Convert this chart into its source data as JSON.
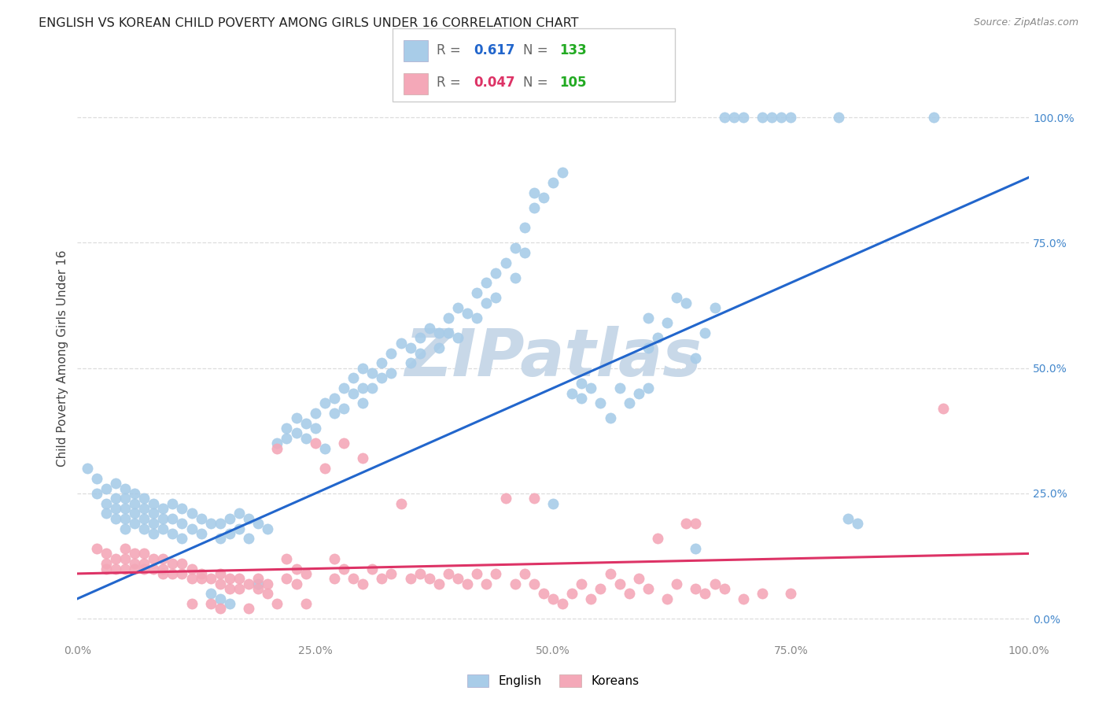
{
  "title": "ENGLISH VS KOREAN CHILD POVERTY AMONG GIRLS UNDER 16 CORRELATION CHART",
  "source": "Source: ZipAtlas.com",
  "ylabel": "Child Poverty Among Girls Under 16",
  "english_R": "0.617",
  "english_N": "133",
  "korean_R": "0.047",
  "korean_N": "105",
  "english_color": "#a8cce8",
  "korean_color": "#f4a8b8",
  "english_line_color": "#2266cc",
  "korean_line_color": "#dd3366",
  "watermark_text": "ZIPatlas",
  "watermark_color": "#c8d8e8",
  "background_color": "#ffffff",
  "grid_color": "#dddddd",
  "title_color": "#222222",
  "source_color": "#888888",
  "tick_color": "#888888",
  "right_tick_color": "#4488cc",
  "legend_N_color": "#22aa22",
  "xtick_labels": [
    "0.0%",
    "25.0%",
    "50.0%",
    "75.0%",
    "100.0%"
  ],
  "xtick_values": [
    0.0,
    0.25,
    0.5,
    0.75,
    1.0
  ],
  "ytick_labels": [
    "0.0%",
    "25.0%",
    "50.0%",
    "75.0%",
    "100.0%"
  ],
  "ytick_values": [
    0.0,
    0.25,
    0.5,
    0.75,
    1.0
  ],
  "english_scatter": [
    [
      0.01,
      0.3
    ],
    [
      0.02,
      0.28
    ],
    [
      0.02,
      0.25
    ],
    [
      0.03,
      0.26
    ],
    [
      0.03,
      0.23
    ],
    [
      0.03,
      0.21
    ],
    [
      0.04,
      0.27
    ],
    [
      0.04,
      0.24
    ],
    [
      0.04,
      0.22
    ],
    [
      0.04,
      0.2
    ],
    [
      0.05,
      0.26
    ],
    [
      0.05,
      0.24
    ],
    [
      0.05,
      0.22
    ],
    [
      0.05,
      0.2
    ],
    [
      0.05,
      0.18
    ],
    [
      0.06,
      0.25
    ],
    [
      0.06,
      0.23
    ],
    [
      0.06,
      0.21
    ],
    [
      0.06,
      0.19
    ],
    [
      0.07,
      0.24
    ],
    [
      0.07,
      0.22
    ],
    [
      0.07,
      0.2
    ],
    [
      0.07,
      0.18
    ],
    [
      0.08,
      0.23
    ],
    [
      0.08,
      0.21
    ],
    [
      0.08,
      0.19
    ],
    [
      0.08,
      0.17
    ],
    [
      0.09,
      0.22
    ],
    [
      0.09,
      0.2
    ],
    [
      0.09,
      0.18
    ],
    [
      0.1,
      0.23
    ],
    [
      0.1,
      0.2
    ],
    [
      0.1,
      0.17
    ],
    [
      0.11,
      0.22
    ],
    [
      0.11,
      0.19
    ],
    [
      0.11,
      0.16
    ],
    [
      0.12,
      0.21
    ],
    [
      0.12,
      0.18
    ],
    [
      0.13,
      0.2
    ],
    [
      0.13,
      0.17
    ],
    [
      0.14,
      0.19
    ],
    [
      0.14,
      0.05
    ],
    [
      0.15,
      0.19
    ],
    [
      0.15,
      0.16
    ],
    [
      0.15,
      0.04
    ],
    [
      0.16,
      0.2
    ],
    [
      0.16,
      0.17
    ],
    [
      0.16,
      0.03
    ],
    [
      0.17,
      0.21
    ],
    [
      0.17,
      0.18
    ],
    [
      0.18,
      0.2
    ],
    [
      0.18,
      0.16
    ],
    [
      0.19,
      0.19
    ],
    [
      0.19,
      0.07
    ],
    [
      0.2,
      0.18
    ],
    [
      0.21,
      0.35
    ],
    [
      0.22,
      0.36
    ],
    [
      0.22,
      0.38
    ],
    [
      0.23,
      0.4
    ],
    [
      0.23,
      0.37
    ],
    [
      0.24,
      0.39
    ],
    [
      0.24,
      0.36
    ],
    [
      0.25,
      0.41
    ],
    [
      0.25,
      0.38
    ],
    [
      0.26,
      0.43
    ],
    [
      0.26,
      0.34
    ],
    [
      0.27,
      0.44
    ],
    [
      0.27,
      0.41
    ],
    [
      0.28,
      0.46
    ],
    [
      0.28,
      0.42
    ],
    [
      0.29,
      0.48
    ],
    [
      0.29,
      0.45
    ],
    [
      0.3,
      0.5
    ],
    [
      0.3,
      0.46
    ],
    [
      0.3,
      0.43
    ],
    [
      0.31,
      0.49
    ],
    [
      0.31,
      0.46
    ],
    [
      0.32,
      0.51
    ],
    [
      0.32,
      0.48
    ],
    [
      0.33,
      0.53
    ],
    [
      0.33,
      0.49
    ],
    [
      0.34,
      0.55
    ],
    [
      0.35,
      0.54
    ],
    [
      0.35,
      0.51
    ],
    [
      0.36,
      0.56
    ],
    [
      0.36,
      0.53
    ],
    [
      0.37,
      0.58
    ],
    [
      0.38,
      0.57
    ],
    [
      0.38,
      0.54
    ],
    [
      0.39,
      0.6
    ],
    [
      0.39,
      0.57
    ],
    [
      0.4,
      0.62
    ],
    [
      0.4,
      0.56
    ],
    [
      0.41,
      0.61
    ],
    [
      0.42,
      0.65
    ],
    [
      0.42,
      0.6
    ],
    [
      0.43,
      0.67
    ],
    [
      0.43,
      0.63
    ],
    [
      0.44,
      0.69
    ],
    [
      0.44,
      0.64
    ],
    [
      0.45,
      0.71
    ],
    [
      0.46,
      0.74
    ],
    [
      0.46,
      0.68
    ],
    [
      0.47,
      0.78
    ],
    [
      0.47,
      0.73
    ],
    [
      0.48,
      0.82
    ],
    [
      0.48,
      0.85
    ],
    [
      0.49,
      0.84
    ],
    [
      0.5,
      0.87
    ],
    [
      0.5,
      0.23
    ],
    [
      0.51,
      0.89
    ],
    [
      0.52,
      0.45
    ],
    [
      0.53,
      0.47
    ],
    [
      0.53,
      0.44
    ],
    [
      0.54,
      0.46
    ],
    [
      0.55,
      0.43
    ],
    [
      0.56,
      0.4
    ],
    [
      0.57,
      0.46
    ],
    [
      0.58,
      0.43
    ],
    [
      0.59,
      0.45
    ],
    [
      0.6,
      0.6
    ],
    [
      0.6,
      0.54
    ],
    [
      0.6,
      0.46
    ],
    [
      0.61,
      0.56
    ],
    [
      0.62,
      0.59
    ],
    [
      0.63,
      0.64
    ],
    [
      0.64,
      0.63
    ],
    [
      0.65,
      0.52
    ],
    [
      0.65,
      0.14
    ],
    [
      0.66,
      0.57
    ],
    [
      0.67,
      0.62
    ],
    [
      0.68,
      1.0
    ],
    [
      0.69,
      1.0
    ],
    [
      0.7,
      1.0
    ],
    [
      0.72,
      1.0
    ],
    [
      0.73,
      1.0
    ],
    [
      0.74,
      1.0
    ],
    [
      0.75,
      1.0
    ],
    [
      0.8,
      1.0
    ],
    [
      0.81,
      0.2
    ],
    [
      0.82,
      0.19
    ],
    [
      0.9,
      1.0
    ]
  ],
  "korean_scatter": [
    [
      0.02,
      0.14
    ],
    [
      0.03,
      0.13
    ],
    [
      0.03,
      0.11
    ],
    [
      0.03,
      0.1
    ],
    [
      0.04,
      0.12
    ],
    [
      0.04,
      0.1
    ],
    [
      0.05,
      0.14
    ],
    [
      0.05,
      0.12
    ],
    [
      0.05,
      0.1
    ],
    [
      0.06,
      0.13
    ],
    [
      0.06,
      0.11
    ],
    [
      0.06,
      0.1
    ],
    [
      0.07,
      0.13
    ],
    [
      0.07,
      0.11
    ],
    [
      0.07,
      0.1
    ],
    [
      0.08,
      0.12
    ],
    [
      0.08,
      0.1
    ],
    [
      0.09,
      0.12
    ],
    [
      0.09,
      0.1
    ],
    [
      0.09,
      0.09
    ],
    [
      0.1,
      0.11
    ],
    [
      0.1,
      0.09
    ],
    [
      0.11,
      0.11
    ],
    [
      0.11,
      0.09
    ],
    [
      0.12,
      0.1
    ],
    [
      0.12,
      0.08
    ],
    [
      0.12,
      0.03
    ],
    [
      0.13,
      0.09
    ],
    [
      0.13,
      0.08
    ],
    [
      0.14,
      0.08
    ],
    [
      0.14,
      0.03
    ],
    [
      0.15,
      0.09
    ],
    [
      0.15,
      0.07
    ],
    [
      0.15,
      0.02
    ],
    [
      0.16,
      0.08
    ],
    [
      0.16,
      0.06
    ],
    [
      0.17,
      0.08
    ],
    [
      0.17,
      0.06
    ],
    [
      0.18,
      0.07
    ],
    [
      0.18,
      0.02
    ],
    [
      0.19,
      0.08
    ],
    [
      0.19,
      0.06
    ],
    [
      0.2,
      0.07
    ],
    [
      0.2,
      0.05
    ],
    [
      0.21,
      0.03
    ],
    [
      0.21,
      0.34
    ],
    [
      0.22,
      0.12
    ],
    [
      0.22,
      0.08
    ],
    [
      0.23,
      0.1
    ],
    [
      0.23,
      0.07
    ],
    [
      0.24,
      0.09
    ],
    [
      0.24,
      0.03
    ],
    [
      0.25,
      0.35
    ],
    [
      0.26,
      0.3
    ],
    [
      0.27,
      0.12
    ],
    [
      0.27,
      0.08
    ],
    [
      0.28,
      0.1
    ],
    [
      0.28,
      0.35
    ],
    [
      0.29,
      0.08
    ],
    [
      0.3,
      0.32
    ],
    [
      0.3,
      0.07
    ],
    [
      0.31,
      0.1
    ],
    [
      0.32,
      0.08
    ],
    [
      0.33,
      0.09
    ],
    [
      0.34,
      0.23
    ],
    [
      0.35,
      0.08
    ],
    [
      0.36,
      0.09
    ],
    [
      0.37,
      0.08
    ],
    [
      0.38,
      0.07
    ],
    [
      0.39,
      0.09
    ],
    [
      0.4,
      0.08
    ],
    [
      0.41,
      0.07
    ],
    [
      0.42,
      0.09
    ],
    [
      0.43,
      0.07
    ],
    [
      0.44,
      0.09
    ],
    [
      0.45,
      0.24
    ],
    [
      0.46,
      0.07
    ],
    [
      0.47,
      0.09
    ],
    [
      0.48,
      0.07
    ],
    [
      0.48,
      0.24
    ],
    [
      0.49,
      0.05
    ],
    [
      0.5,
      0.04
    ],
    [
      0.51,
      0.03
    ],
    [
      0.52,
      0.05
    ],
    [
      0.53,
      0.07
    ],
    [
      0.54,
      0.04
    ],
    [
      0.55,
      0.06
    ],
    [
      0.56,
      0.09
    ],
    [
      0.57,
      0.07
    ],
    [
      0.58,
      0.05
    ],
    [
      0.59,
      0.08
    ],
    [
      0.6,
      0.06
    ],
    [
      0.61,
      0.16
    ],
    [
      0.62,
      0.04
    ],
    [
      0.63,
      0.07
    ],
    [
      0.64,
      0.19
    ],
    [
      0.65,
      0.06
    ],
    [
      0.65,
      0.19
    ],
    [
      0.66,
      0.05
    ],
    [
      0.67,
      0.07
    ],
    [
      0.68,
      0.06
    ],
    [
      0.7,
      0.04
    ],
    [
      0.72,
      0.05
    ],
    [
      0.75,
      0.05
    ],
    [
      0.91,
      0.42
    ]
  ],
  "english_line_x": [
    0.0,
    1.0
  ],
  "english_line_y": [
    0.04,
    0.88
  ],
  "korean_line_x": [
    0.0,
    1.0
  ],
  "korean_line_y": [
    0.09,
    0.13
  ]
}
